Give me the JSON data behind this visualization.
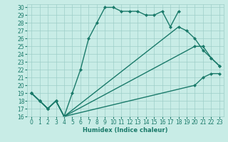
{
  "line_color": "#1a7a6a",
  "bg_color": "#c8ece6",
  "grid_color": "#9ecec8",
  "xlabel": "Humidex (Indice chaleur)",
  "xlim": [
    -0.5,
    23.5
  ],
  "ylim": [
    16,
    30.4
  ],
  "yticks": [
    16,
    17,
    18,
    19,
    20,
    21,
    22,
    23,
    24,
    25,
    26,
    27,
    28,
    29,
    30
  ],
  "xticks": [
    0,
    1,
    2,
    3,
    4,
    5,
    6,
    7,
    8,
    9,
    10,
    11,
    12,
    13,
    14,
    15,
    16,
    17,
    18,
    19,
    20,
    21,
    22,
    23
  ],
  "marker": "D",
  "markersize": 2.0,
  "linewidth": 1.0,
  "lines": [
    {
      "x": [
        0,
        1,
        2,
        3,
        4,
        5,
        6,
        7,
        8,
        9,
        10,
        11,
        12,
        13,
        14,
        15,
        16,
        17,
        18
      ],
      "y": [
        19,
        18,
        17,
        18,
        16,
        19,
        22,
        26,
        28,
        30,
        30,
        29.5,
        29.5,
        29.5,
        29,
        29,
        29.5,
        27.5,
        29.5
      ]
    },
    {
      "x": [
        0,
        1,
        2,
        3,
        4,
        18,
        19,
        20,
        21,
        22,
        23
      ],
      "y": [
        19,
        18,
        17,
        18,
        16,
        27.5,
        27.0,
        26.0,
        24.5,
        23.5,
        22.5
      ]
    },
    {
      "x": [
        0,
        1,
        2,
        3,
        4,
        20,
        21,
        22,
        23
      ],
      "y": [
        19,
        18,
        17,
        18,
        16,
        25,
        25,
        23.5,
        22.5
      ]
    },
    {
      "x": [
        0,
        1,
        2,
        3,
        4,
        20,
        21,
        22,
        23
      ],
      "y": [
        19,
        18,
        17,
        18,
        16,
        20.0,
        21.0,
        21.5,
        21.5
      ]
    }
  ],
  "title_color": "#1a7a6a",
  "tick_fontsize": 5.5,
  "xlabel_fontsize": 6.0
}
